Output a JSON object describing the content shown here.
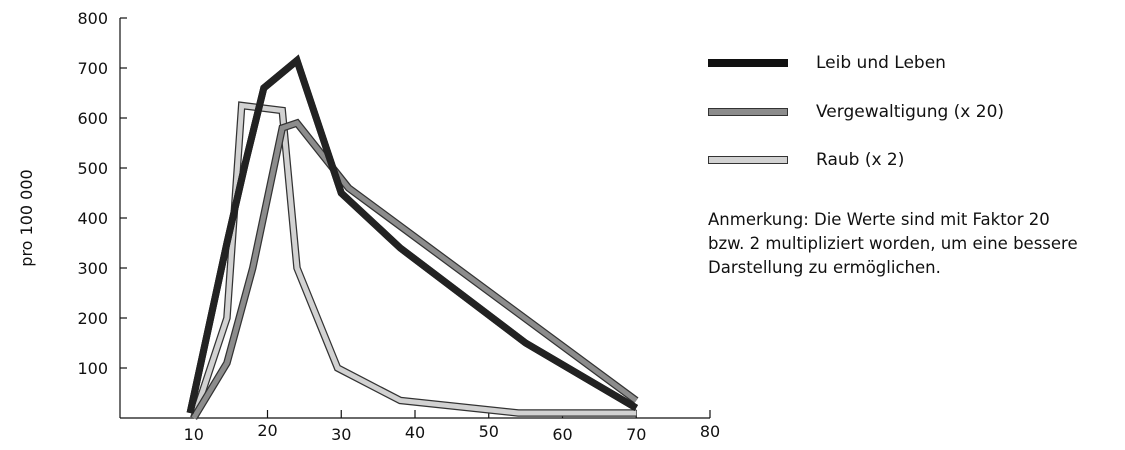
{
  "chart_data": {
    "type": "line",
    "ylabel": "pro 100 000",
    "xlabel": "",
    "xlim": [
      0,
      80
    ],
    "ylim": [
      0,
      800
    ],
    "x_ticks": [
      {
        "value": 10,
        "label": "10"
      },
      {
        "value": 20,
        "label": "20"
      },
      {
        "value": 30,
        "label": "30"
      },
      {
        "value": 40,
        "label": "40"
      },
      {
        "value": 50,
        "label": "50"
      },
      {
        "value": 60,
        "label": "60"
      },
      {
        "value": 70,
        "label": "70"
      },
      {
        "value": 80,
        "label": "80"
      }
    ],
    "y_ticks": [
      {
        "value": 100,
        "label": "100"
      },
      {
        "value": 200,
        "label": "200"
      },
      {
        "value": 300,
        "label": "300"
      },
      {
        "value": 400,
        "label": "400"
      },
      {
        "value": 500,
        "label": "500"
      },
      {
        "value": 600,
        "label": "600"
      },
      {
        "value": 700,
        "label": "700"
      },
      {
        "value": 800,
        "label": "800"
      }
    ],
    "grid": false,
    "legend_position": "right",
    "series": [
      {
        "name": "Leib und Leben",
        "color": "#222222",
        "x": [
          9.5,
          14.5,
          17,
          19.5,
          24,
          30,
          38,
          55,
          70
        ],
        "y": [
          10,
          350,
          510,
          660,
          715,
          450,
          340,
          150,
          20
        ]
      },
      {
        "name": "Vergewaltigung (x 20)",
        "color": "#8c8c8c",
        "x": [
          10,
          14.5,
          18,
          22,
          24,
          31,
          70
        ],
        "y": [
          0,
          110,
          300,
          580,
          590,
          460,
          35
        ]
      },
      {
        "name": "Raub (x 2)",
        "color": "#d2d2d2",
        "x": [
          10,
          14.5,
          16.5,
          22,
          24,
          29.5,
          38,
          54,
          70
        ],
        "y": [
          0,
          200,
          625,
          615,
          300,
          100,
          35,
          10,
          10
        ]
      }
    ],
    "annotation": {
      "lines": [
        "Anmerkung: Die Werte sind mit Faktor 20",
        "bzw. 2 multipliziert worden, um eine bessere",
        "Darstellung zu ermöglichen."
      ]
    }
  }
}
